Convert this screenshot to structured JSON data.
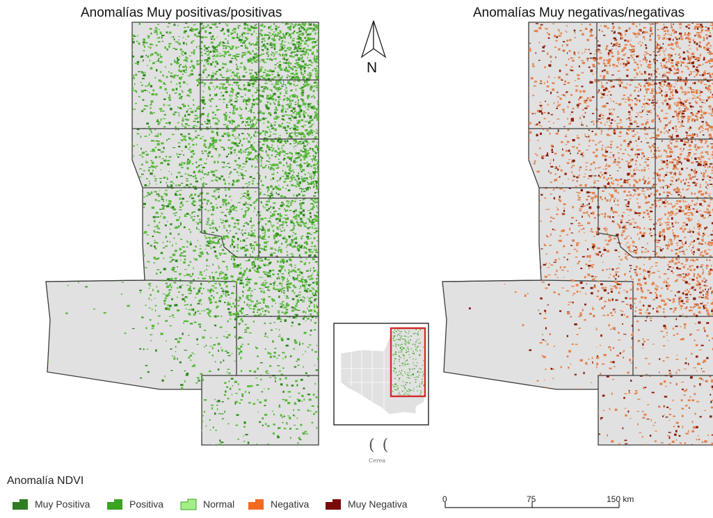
{
  "maps": {
    "left": {
      "title": "Anomalías Muy positivas/positivas"
    },
    "right": {
      "title": "Anomalías Muy negativas/negativas"
    }
  },
  "north_arrow": {
    "label": "N",
    "icon": "north-arrow-icon"
  },
  "legend": {
    "title": "Anomalía NDVI",
    "items": [
      {
        "label": "Muy Positiva",
        "color": "#2e7d22"
      },
      {
        "label": "Positiva",
        "color": "#3aa523"
      },
      {
        "label": "Normal",
        "color": "#a4ee8a"
      },
      {
        "label": "Negativa",
        "color": "#f26a1e"
      },
      {
        "label": "Muy Negativa",
        "color": "#7a0a0a"
      }
    ]
  },
  "scale_bar": {
    "labels": [
      "0",
      "75",
      "150 km"
    ]
  },
  "inset": {
    "logo_glyph": "( (",
    "logo_caption": "Cerea"
  },
  "colors": {
    "district_fill": "#e1e1e1",
    "district_border": "#3a3a3a",
    "positive_light": "#58b83a",
    "positive_dark": "#2d8a1c",
    "negative_light": "#e3824e",
    "negative_dark": "#8a1e0a",
    "inset_frame": "#d42a2a"
  }
}
